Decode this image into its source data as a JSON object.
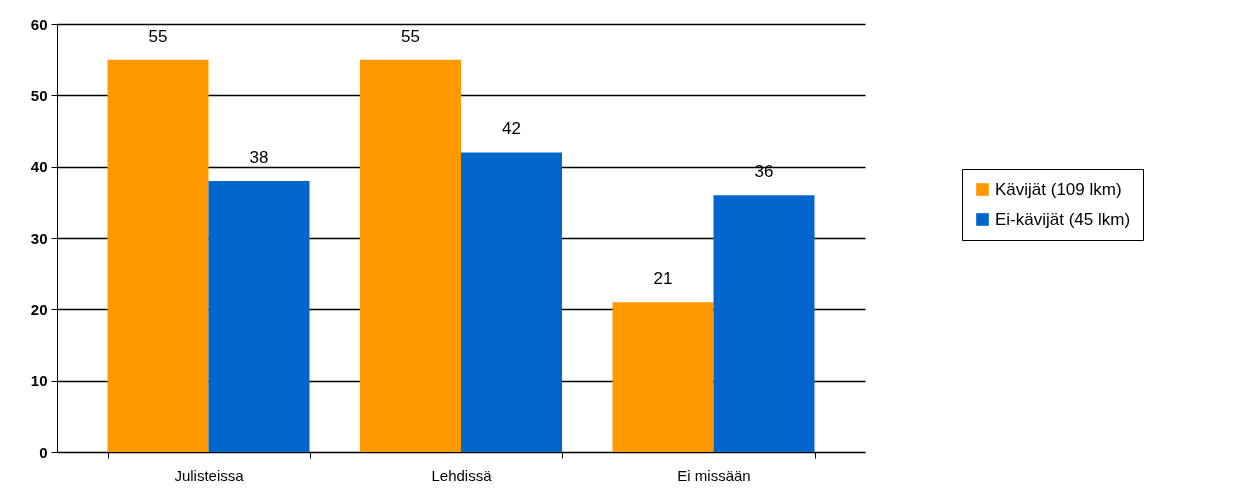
{
  "chart_data": {
    "type": "bar",
    "categories": [
      "Julisteissa",
      "Lehdissä",
      "Ei missään"
    ],
    "series": [
      {
        "name": "Kävijät (109 lkm)",
        "color": "#ff9900",
        "values": [
          55,
          55,
          21
        ]
      },
      {
        "name": "Ei-kävijät (45 lkm)",
        "color": "#0066cc",
        "values": [
          38,
          42,
          36
        ]
      }
    ],
    "ylim": [
      0,
      60
    ],
    "yticks": [
      0,
      10,
      20,
      30,
      40,
      50,
      60
    ],
    "grid": "y",
    "legend": "right",
    "data_labels": true
  }
}
